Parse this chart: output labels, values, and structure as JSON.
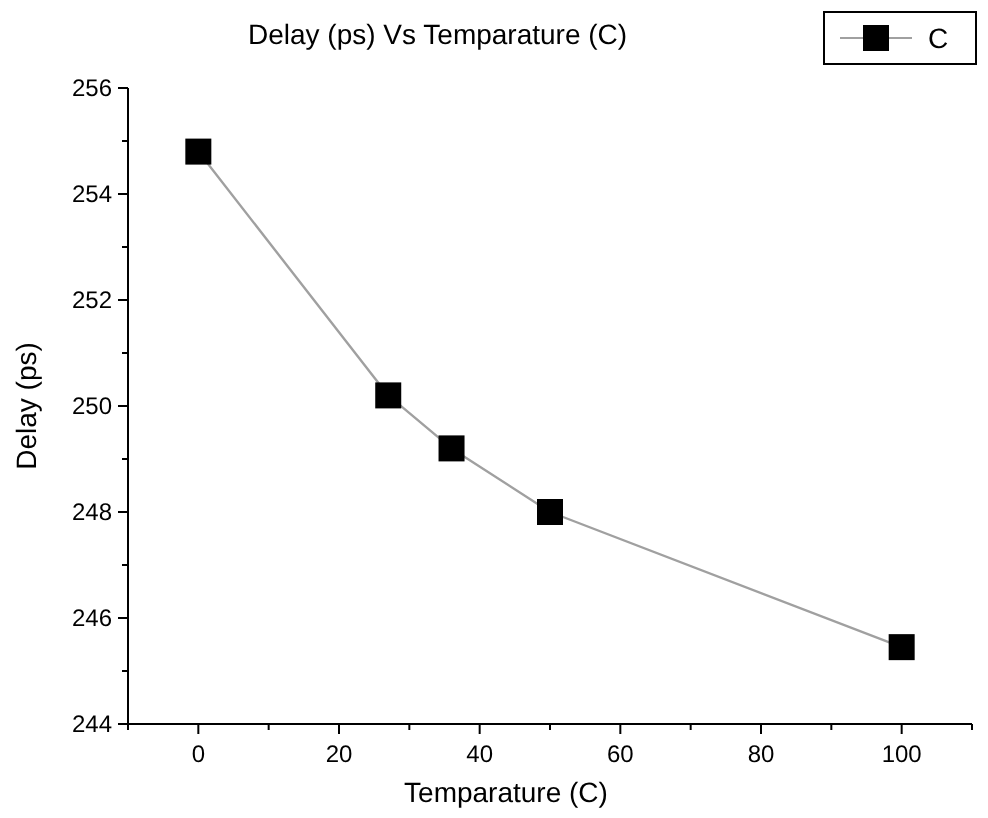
{
  "chart_data": {
    "type": "line",
    "title": "Delay (ps) Vs Temparature (C)",
    "xlabel": "Temparature (C)",
    "ylabel": "Delay (ps)",
    "x": [
      0,
      27,
      36,
      50,
      100
    ],
    "series": [
      {
        "name": "C",
        "color": "#a0a0a0",
        "values": [
          254.8,
          250.2,
          249.2,
          248.0,
          245.45
        ]
      }
    ],
    "xlim": [
      -10,
      110
    ],
    "xticks": [
      {
        "value": -10,
        "label": null
      },
      0,
      {
        "value": 10,
        "label": null
      },
      20,
      {
        "value": 30,
        "label": null
      },
      40,
      {
        "value": 50,
        "label": null
      },
      60,
      {
        "value": 70,
        "label": null
      },
      80,
      {
        "value": 90,
        "label": null
      },
      100,
      {
        "value": 110,
        "label": null
      }
    ],
    "ylim": [
      244,
      256
    ],
    "yticks": [
      244,
      {
        "value": 245,
        "label": null
      },
      246,
      {
        "value": 247,
        "label": null
      },
      248,
      {
        "value": 249,
        "label": null
      },
      250,
      {
        "value": 251,
        "label": null
      },
      252,
      {
        "value": 253,
        "label": null
      },
      254,
      {
        "value": 255,
        "label": null
      },
      256
    ],
    "marker": "square",
    "line_style": "solid",
    "grid": false,
    "legend": "top right"
  }
}
